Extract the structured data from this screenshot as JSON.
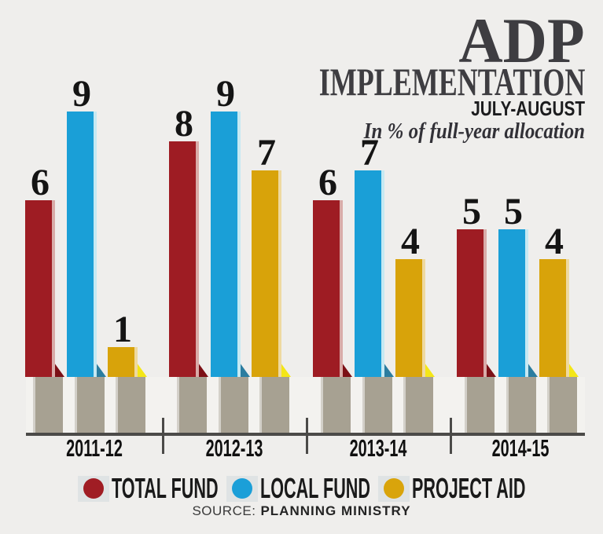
{
  "title": {
    "main": "ADP",
    "line2": "IMPLEMENTATION",
    "period": "JULY-AUGUST",
    "note": "In % of full-year allocation"
  },
  "legend": {
    "items": [
      {
        "label": "TOTAL FUND",
        "color": "#a01d24"
      },
      {
        "label": "LOCAL FUND",
        "color": "#1b9fd8"
      },
      {
        "label": "PROJECT AID",
        "color": "#d9a40b"
      }
    ]
  },
  "source": {
    "label": "SOURCE:",
    "value": "PLANNING MINISTRY"
  },
  "chart_data": {
    "type": "bar",
    "title": "ADP IMPLEMENTATION",
    "subtitle": "JULY-AUGUST",
    "note": "In % of full-year allocation",
    "categories": [
      "2011-12",
      "2012-13",
      "2013-14",
      "2014-15"
    ],
    "series": [
      {
        "name": "TOTAL FUND",
        "color": "#9e1c23",
        "edge_color": "#d9aca9",
        "fold_color": "#7c1016",
        "values": [
          6,
          8,
          6,
          5
        ]
      },
      {
        "name": "LOCAL FUND",
        "color": "#1a9fd7",
        "edge_color": "#c5e9f3",
        "fold_color": "#2b7da0",
        "values": [
          9,
          9,
          7,
          5
        ]
      },
      {
        "name": "PROJECT AID",
        "color": "#d8a30a",
        "edge_color": "#eed9a0",
        "fold_color": "#f4e617",
        "values": [
          1,
          7,
          4,
          4
        ]
      }
    ],
    "ylim": [
      0,
      10
    ],
    "grid": false,
    "value_labels": true,
    "legend_position": "bottom",
    "axis_color": "#4b4a48",
    "pedestal_color": "#a7a192",
    "source": "PLANNING MINISTRY"
  }
}
